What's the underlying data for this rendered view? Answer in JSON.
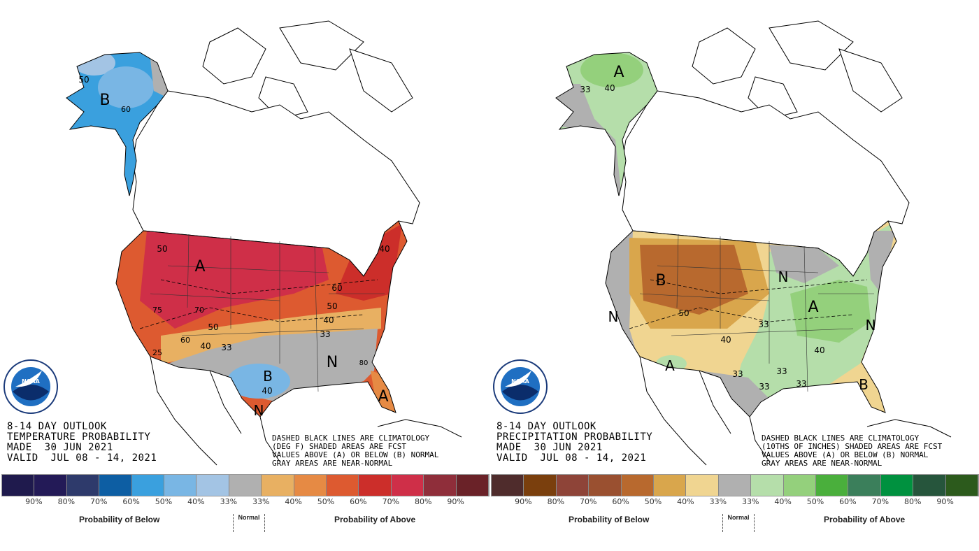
{
  "temperature": {
    "title_lines": [
      "8-14 DAY OUTLOOK",
      "TEMPERATURE PROBABILITY",
      "MADE  30 JUN 2021",
      "VALID  JUL 08 - 14, 2021"
    ],
    "note_lines": [
      "DASHED BLACK LINES ARE CLIMATOLOGY",
      "(DEG F) SHADED AREAS ARE FCST",
      "VALUES ABOVE (A) OR BELOW (B) NORMAL",
      "GRAY AREAS ARE NEAR-NORMAL"
    ],
    "legend_colors": [
      "#1f1a4d",
      "#231a57",
      "#2e3a6b",
      "#0d5ea3",
      "#3aa0de",
      "#79b6e4",
      "#a3c4e4",
      "#b0b0b0",
      "#e8b062",
      "#e68a44",
      "#dd5a30",
      "#cc2e2a",
      "#cf2f48",
      "#8f2e3a",
      "#6a2228"
    ],
    "legend_ticks": [
      "90%",
      "80%",
      "70%",
      "60%",
      "50%",
      "40%",
      "33%",
      "33%",
      "40%",
      "50%",
      "60%",
      "70%",
      "80%",
      "90%"
    ],
    "below_label": "Probability of Below",
    "normal_label": "Normal",
    "above_label": "Probability of Above",
    "map_labels": [
      "A",
      "B",
      "A",
      "N",
      "B",
      "N",
      "50",
      "75",
      "70",
      "50",
      "60",
      "40",
      "33",
      "25",
      "60",
      "50",
      "40",
      "33",
      "40",
      "80",
      "40",
      "50",
      "60"
    ]
  },
  "precipitation": {
    "title_lines": [
      "8-14 DAY OUTLOOK",
      "PRECIPITATION PROBABILITY",
      "MADE  30 JUN 2021",
      "VALID  JUL 08 - 14, 2021"
    ],
    "note_lines": [
      "DASHED BLACK LINES ARE CLIMATOLOGY",
      "(10THS OF INCHES) SHADED AREAS ARE FCST",
      "VALUES ABOVE (A) OR BELOW (B) NORMAL",
      "GRAY AREAS ARE NEAR-NORMAL"
    ],
    "legend_colors": [
      "#4f2c2c",
      "#7a3f0d",
      "#8e4438",
      "#9a5030",
      "#b8692e",
      "#d9a64c",
      "#f0d591",
      "#b0b0b0",
      "#b5deaa",
      "#94d07c",
      "#4aaf3c",
      "#3b7f5b",
      "#00913f",
      "#26553c",
      "#2c5a1c"
    ],
    "legend_ticks": [
      "90%",
      "80%",
      "70%",
      "60%",
      "50%",
      "40%",
      "33%",
      "33%",
      "40%",
      "50%",
      "60%",
      "70%",
      "80%",
      "90%"
    ],
    "below_label": "Probability of Below",
    "normal_label": "Normal",
    "above_label": "Probability of Above",
    "map_labels": [
      "A",
      "33",
      "40",
      "B",
      "50",
      "40",
      "33",
      "N",
      "A",
      "40",
      "33",
      "33",
      "33",
      "33",
      "B",
      "A",
      "N",
      "N"
    ]
  },
  "logo_text": "NOAA"
}
